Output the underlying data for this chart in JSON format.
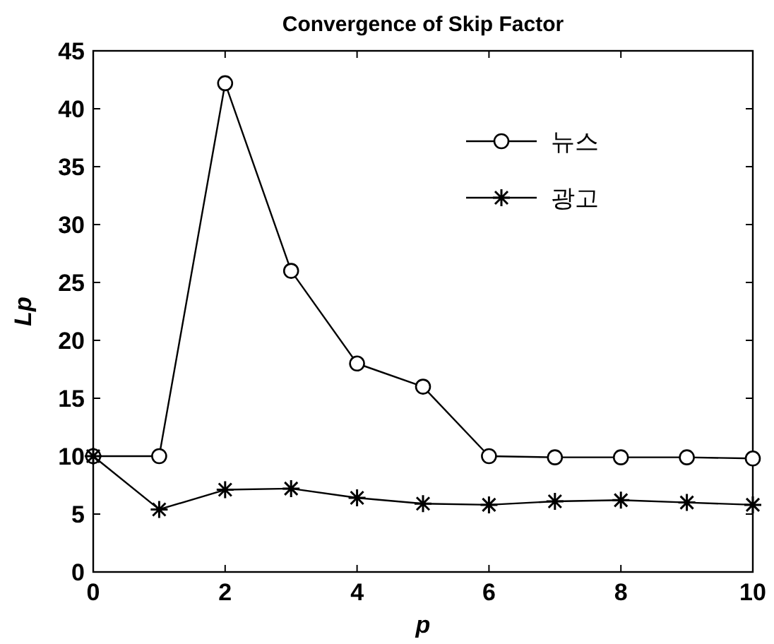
{
  "chart_data": {
    "type": "line",
    "title": "Convergence of Skip Factor",
    "xlabel": "p",
    "ylabel": "Lp",
    "x": [
      0,
      1,
      2,
      3,
      4,
      5,
      6,
      7,
      8,
      9,
      10
    ],
    "series": [
      {
        "name": "뉴스",
        "color": "#000000",
        "marker": "circle",
        "values": [
          10,
          10,
          42.2,
          26,
          18,
          16,
          10,
          9.9,
          9.9,
          9.9,
          9.8
        ]
      },
      {
        "name": "광고",
        "color": "#000000",
        "marker": "cross",
        "values": [
          10,
          5.4,
          7.1,
          7.2,
          6.4,
          5.9,
          5.8,
          6.1,
          6.2,
          6,
          5.8
        ]
      }
    ],
    "xlim": [
      0,
      10
    ],
    "xticks": [
      0,
      2,
      4,
      6,
      8,
      10
    ],
    "ylim": [
      0,
      45
    ],
    "yticks": [
      0,
      5,
      10,
      15,
      20,
      25,
      30,
      35,
      40,
      45
    ],
    "grid": false,
    "legend": "top right",
    "line_style": "solid"
  }
}
